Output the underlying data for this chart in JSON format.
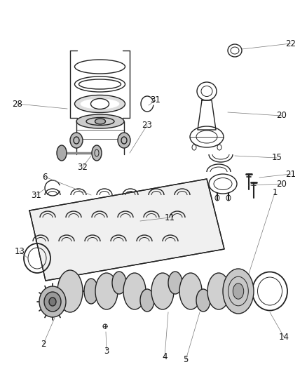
{
  "background_color": "#ffffff",
  "fig_width": 4.38,
  "fig_height": 5.33,
  "line_color": "#222222",
  "label_color": "#333333",
  "label_fontsize": 8.5,
  "leader_lw": 0.5,
  "part_lw": 1.0
}
